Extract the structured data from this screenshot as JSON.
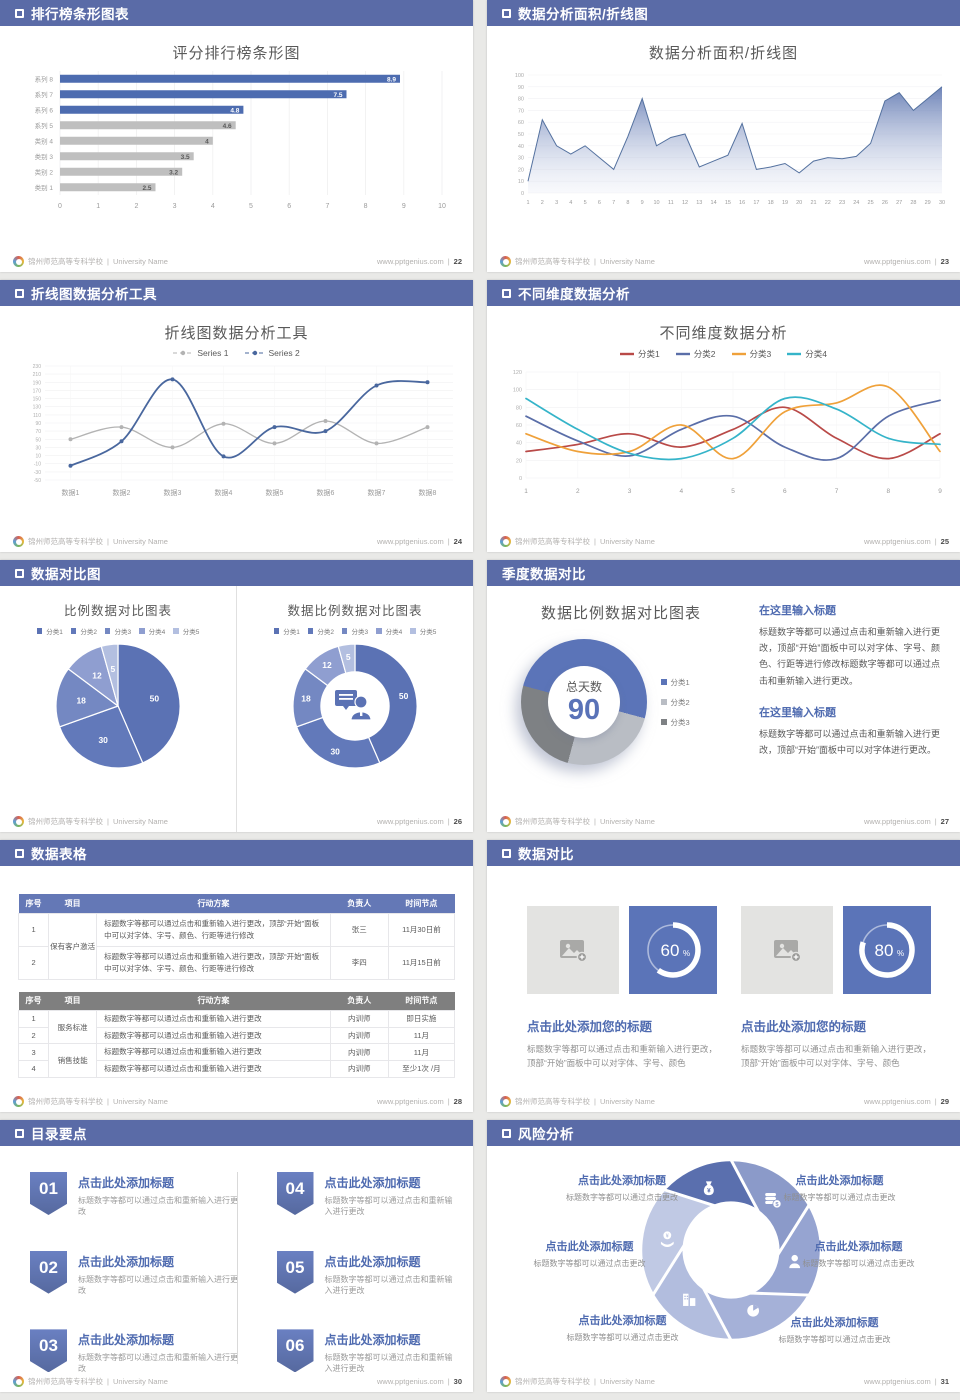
{
  "footer": {
    "school": "锦州师范高等专科学校",
    "divider": "|",
    "university": "University Name",
    "website": "www.pptgenius.com",
    "page_sep": "|"
  },
  "slides": [
    {
      "header": "排行榜条形图表",
      "page": "22"
    },
    {
      "header": "数据分析面积/折线图",
      "page": "23"
    },
    {
      "header": "折线图数据分析工具",
      "page": "24"
    },
    {
      "header": "不同维度数据分析",
      "page": "25"
    },
    {
      "header": "数据对比图",
      "page": "26"
    },
    {
      "header": "季度数据对比",
      "page": "27"
    },
    {
      "header": "数据表格",
      "page": "28"
    },
    {
      "header": "数据对比",
      "page": "29"
    },
    {
      "header": "目录要点",
      "page": "30"
    },
    {
      "header": "风险分析",
      "page": "31"
    }
  ],
  "chart_data": [
    {
      "type": "bar",
      "title": "评分排行榜条形图",
      "categories": [
        "系列 8",
        "系列 7",
        "系列 6",
        "系列 5",
        "类别 4",
        "类别 3",
        "类别 2",
        "类别 1"
      ],
      "values": [
        8.9,
        7.5,
        4.8,
        4.6,
        4,
        3.5,
        3.2,
        2.5
      ],
      "highlight_count": 3,
      "bar_blue": "#4d6cb0",
      "bar_gray": "#bfbfbf",
      "xlim": [
        0,
        10
      ]
    },
    {
      "type": "area",
      "title": "数据分析面积/折线图",
      "x": [
        1,
        2,
        3,
        4,
        5,
        6,
        7,
        8,
        9,
        10,
        11,
        12,
        13,
        14,
        15,
        16,
        17,
        18,
        19,
        20,
        21,
        22,
        23,
        24,
        25,
        26,
        27,
        28,
        29,
        30
      ],
      "values": [
        10,
        62,
        40,
        33,
        40,
        30,
        20,
        48,
        80,
        40,
        47,
        50,
        22,
        27,
        32,
        59,
        20,
        22,
        25,
        17,
        27,
        30,
        29,
        31,
        42,
        78,
        85,
        70,
        80,
        90
      ],
      "ylim": [
        0,
        100
      ],
      "ytick": 10,
      "color": "#54719f"
    },
    {
      "type": "line",
      "title": "折线图数据分析工具",
      "categories": [
        "数据1",
        "数据2",
        "数据3",
        "数据4",
        "数据5",
        "数据6",
        "数据7",
        "数据8"
      ],
      "series": [
        {
          "name": "Series 1",
          "color": "#b3b3b3",
          "width": 1.3,
          "values": [
            50,
            80,
            30,
            88,
            40,
            95,
            40,
            80
          ]
        },
        {
          "name": "Series 2",
          "color": "#49679e",
          "width": 1.8,
          "values": [
            -15,
            45,
            197,
            8,
            80,
            70,
            182,
            190
          ]
        }
      ],
      "ylim": [
        -50,
        230
      ],
      "ytick": 20,
      "markers": true
    },
    {
      "type": "line",
      "title": "不同维度数据分析",
      "x": [
        1,
        2,
        3,
        4,
        5,
        6,
        7,
        8,
        9
      ],
      "series": [
        {
          "name": "分类1",
          "color": "#b94a48",
          "width": 1.7,
          "values": [
            30,
            38,
            50,
            35,
            55,
            80,
            45,
            22,
            50
          ]
        },
        {
          "name": "分类2",
          "color": "#5a6ea8",
          "width": 1.7,
          "values": [
            70,
            42,
            25,
            55,
            70,
            35,
            22,
            70,
            88
          ]
        },
        {
          "name": "分类3",
          "color": "#efa13a",
          "width": 1.7,
          "values": [
            50,
            30,
            30,
            60,
            22,
            75,
            85,
            103,
            30
          ]
        },
        {
          "name": "分类4",
          "color": "#35b4c9",
          "width": 1.7,
          "values": [
            90,
            55,
            28,
            22,
            45,
            90,
            78,
            45,
            38
          ]
        }
      ],
      "ylim": [
        0,
        120
      ],
      "ytick": 20,
      "markers": false
    },
    {
      "type": "pie",
      "title": "比例数据对比图表",
      "legend": [
        "分类1",
        "分类2",
        "分类3",
        "分类4",
        "分类5"
      ],
      "values": [
        50,
        30,
        18,
        12,
        5
      ],
      "colors": [
        "#5b72b4",
        "#6279ba",
        "#7488c2",
        "#8f9ed0",
        "#b3bfe0"
      ]
    },
    {
      "type": "donut",
      "title": "数据比例数据对比图表",
      "legend": [
        "分类1",
        "分类2",
        "分类3",
        "分类4",
        "分类5"
      ],
      "values": [
        50,
        30,
        18,
        12,
        5
      ],
      "colors": [
        "#5b72b4",
        "#6279ba",
        "#7488c2",
        "#8f9ed0",
        "#b3bfe0"
      ],
      "center_icon": "consultant-icon"
    },
    {
      "type": "donut",
      "title": "数据比例数据对比图表",
      "legend": [
        "分类1",
        "分类2",
        "分类3"
      ],
      "values": [
        50,
        25,
        25
      ],
      "colors": [
        "#5b74b8",
        "#b9bdc4",
        "#7e8184"
      ],
      "center_label": "总天数",
      "center_value": "90"
    },
    {
      "type": "progress",
      "values": [
        60,
        80
      ],
      "unit": "%"
    }
  ],
  "tables": [
    {
      "columns": [
        "序号",
        "项目",
        "行动方案",
        "负责人",
        "时间节点"
      ],
      "rows": [
        {
          "seq": "1",
          "item": "保有客户激活",
          "item_span": 2,
          "action": "标题数字等都可以通过点击和重新输入进行更改，顶部“开始”面板中可以对字体、字号、颜色、行距等进行修改",
          "owner": "张三",
          "time": "11月30日前"
        },
        {
          "seq": "2",
          "action": "标题数字等都可以通过点击和重新输入进行更改，顶部“开始”面板中可以对字体、字号、颜色、行距等进行修改",
          "owner": "李四",
          "time": "11月15日前"
        }
      ]
    },
    {
      "columns": [
        "序号",
        "项目",
        "行动方案",
        "负责人",
        "时间节点"
      ],
      "rows": [
        {
          "seq": "1",
          "item": "服务标准",
          "item_span": 2,
          "action": "标题数字等都可以通过点击和重新输入进行更改",
          "owner": "内训师",
          "time": "即日实施"
        },
        {
          "seq": "2",
          "action": "标题数字等都可以通过点击和重新输入进行更改",
          "owner": "内训师",
          "time": "11月"
        },
        {
          "seq": "3",
          "item": "销售技能",
          "item_span": 2,
          "action": "标题数字等都可以通过点击和重新输入进行更改",
          "owner": "内训师",
          "time": "11月"
        },
        {
          "seq": "4",
          "action": "标题数字等都可以通过点击和重新输入进行更改",
          "owner": "内训师",
          "time": "至少1次 /月"
        }
      ]
    }
  ],
  "s27_text": {
    "blocks": [
      {
        "title": "在这里输入标题",
        "body": "标题数字等都可以通过点击和重新输入进行更改，顶部“开始”面板中可以对字体、字号、颜色、行距等进行修改标题数字等都可以通过点击和重新输入进行更改。"
      },
      {
        "title": "在这里输入标题",
        "body": "标题数字等都可以通过点击和重新输入进行更改，顶部“开始”面板中可以对字体进行更改。"
      }
    ]
  },
  "s29": {
    "cards": [
      {
        "title": "点击此处添加您的标题",
        "body": "标题数字等都可以通过点击和重新输入进行更改，顶部“开始”面板中可以对字体、字号、颜色"
      },
      {
        "title": "点击此处添加您的标题",
        "body": "标题数字等都可以通过点击和重新输入进行更改，顶部“开始”面板中可以对字体、字号、颜色"
      }
    ]
  },
  "s30": {
    "items": [
      {
        "num": "01",
        "title": "点击此处添加标题",
        "body": "标题数字等都可以通过点击和重新输入进行更改"
      },
      {
        "num": "02",
        "title": "点击此处添加标题",
        "body": "标题数字等都可以通过点击和重新输入进行更改"
      },
      {
        "num": "03",
        "title": "点击此处添加标题",
        "body": "标题数字等都可以通过点击和重新输入进行更改"
      },
      {
        "num": "04",
        "title": "点击此处添加标题",
        "body": "标题数字等都可以通过点击和重新输入进行更改"
      },
      {
        "num": "05",
        "title": "点击此处添加标题",
        "body": "标题数字等都可以通过点击和重新输入进行更改"
      },
      {
        "num": "06",
        "title": "点击此处添加标题",
        "body": "标题数字等都可以通过点击和重新输入进行更改"
      }
    ]
  },
  "s31": {
    "labels": [
      {
        "pos": "tl",
        "title": "点击此处添加标题",
        "body": "标题数字等都可以通过点击更改"
      },
      {
        "pos": "tr",
        "title": "点击此处添加标题",
        "body": "标题数字等都可以通过点击更改"
      },
      {
        "pos": "l",
        "title": "点击此处添加标题",
        "body": "标题数字等都可以通过点击更改"
      },
      {
        "pos": "r",
        "title": "点击此处添加标题",
        "body": "标题数字等都可以通过点击更改"
      },
      {
        "pos": "bl",
        "title": "点击此处添加标题",
        "body": "标题数字等都可以通过点击更改"
      },
      {
        "pos": "br",
        "title": "点击此处添加标题",
        "body": "标题数字等都可以通过点击更改"
      }
    ],
    "blades": [
      "#5a6fae",
      "#8b9ac9",
      "#96a4d1",
      "#a5b1d8",
      "#b2bdde",
      "#c0c9e4"
    ],
    "icons": [
      "money-bag-icon",
      "coins-icon",
      "person-icon",
      "pie-chart-icon",
      "building-icon",
      "hand-coin-icon"
    ]
  }
}
